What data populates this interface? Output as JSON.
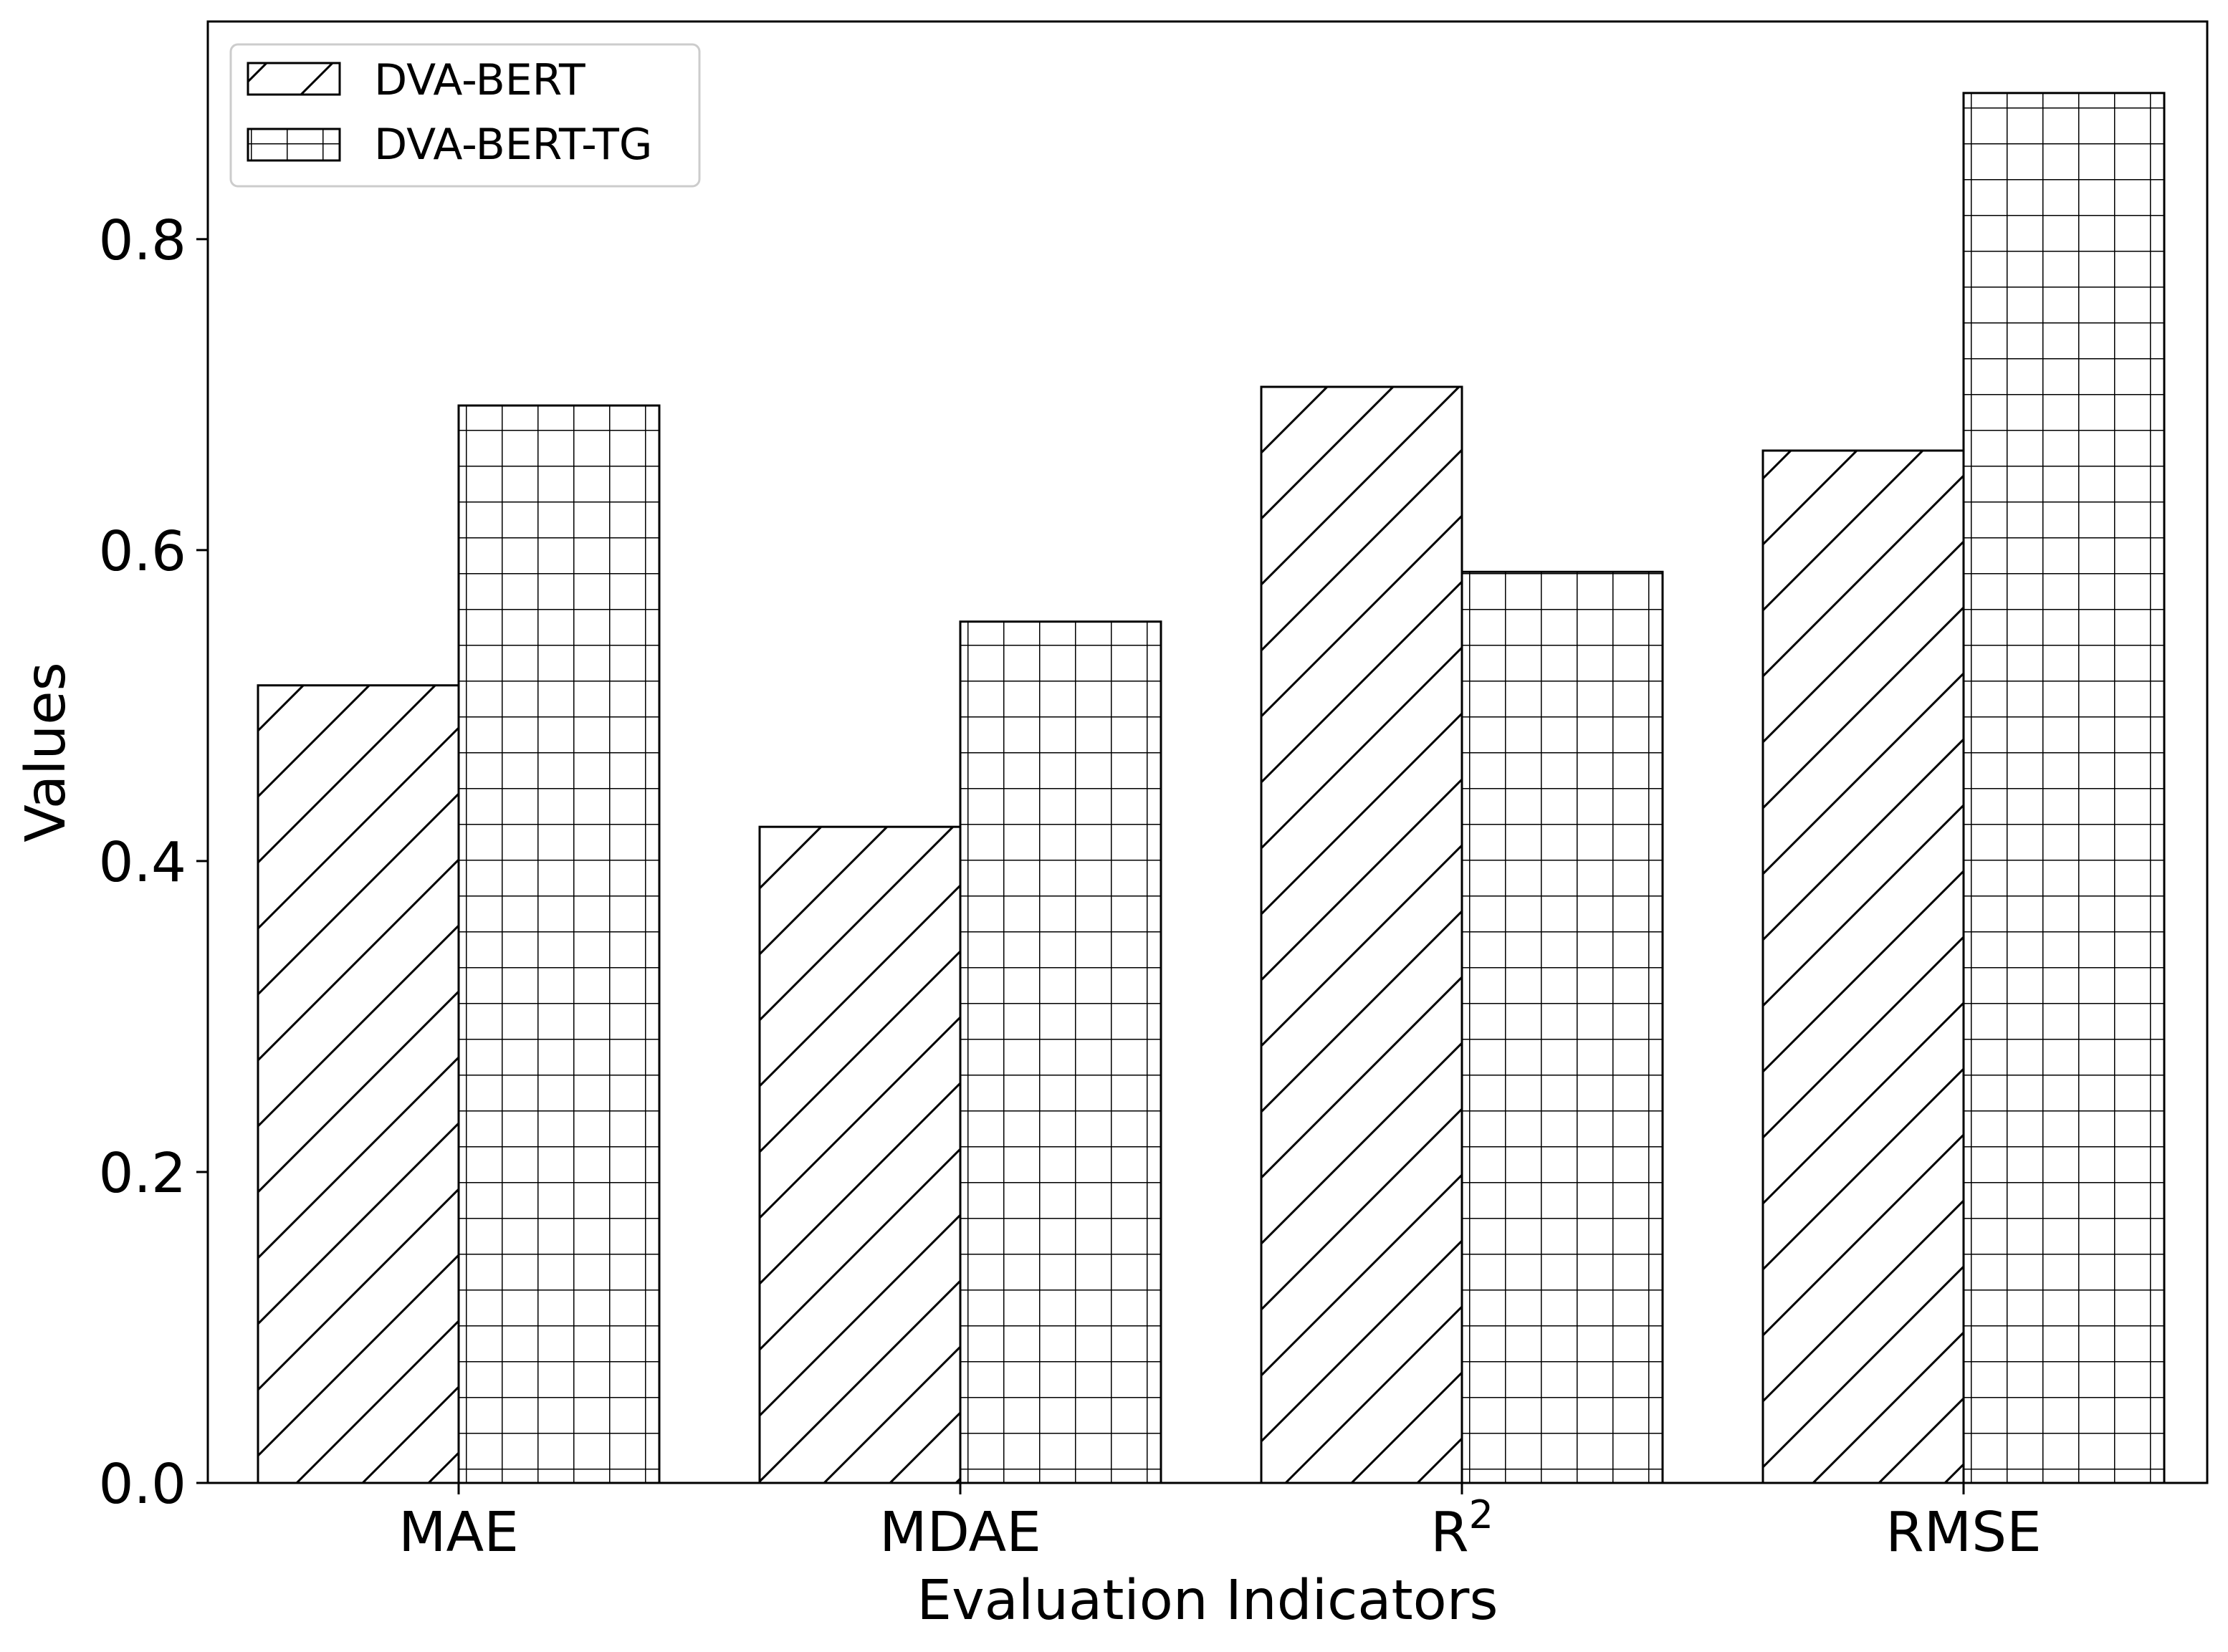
{
  "chart_data": {
    "type": "bar",
    "title": "",
    "xlabel": "Evaluation Indicators",
    "ylabel": "Values",
    "categories": [
      "MAE",
      "MDAE",
      "R",
      "RMSE"
    ],
    "category_superscripts": [
      "",
      "",
      "2",
      ""
    ],
    "series": [
      {
        "name": "DVA-BERT",
        "values": [
          0.513,
          0.422,
          0.705,
          0.664
        ],
        "hatch": "diagonal"
      },
      {
        "name": "DVA-BERT-TG",
        "values": [
          0.693,
          0.554,
          0.586,
          0.894
        ],
        "hatch": "grid"
      }
    ],
    "ylim": [
      0,
      0.94
    ],
    "yticks": [
      "0.0",
      "0.2",
      "0.4",
      "0.6",
      "0.8"
    ],
    "ytick_values": [
      0,
      0.2,
      0.4,
      0.6,
      0.8
    ],
    "grid": false,
    "legend_position": "top-left",
    "colors": {
      "bar_fill": "#ffffff",
      "edge": "#000000",
      "background": "#ffffff"
    }
  }
}
